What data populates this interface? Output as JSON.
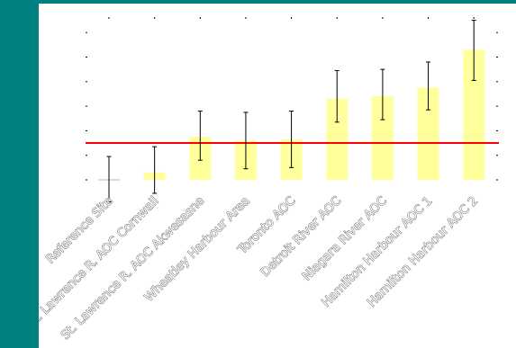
{
  "colors": {
    "background": "#00807f",
    "panel": "#ffffff",
    "bar_fill": "#ffff9c",
    "reference_line": "#ff0000",
    "error_bar": "#000000",
    "tick_label": "#ffffff",
    "tick_label_outline": "#5a5a5a"
  },
  "chart_data": {
    "type": "bar",
    "categories": [
      "Reference Site",
      "St. Lawrence R. AOC Cornwall",
      "St. Lawrence R. AOC Akwesasne",
      "Wheatley Harbour Area",
      "Toronto AOC",
      "Detroit River AOC",
      "Niagara River AOC",
      "Hamilton Harbour AOC 1",
      "Hamilton Harbour AOC 2"
    ],
    "values": [
      0,
      0.3,
      1.75,
      1.6,
      1.65,
      3.3,
      3.4,
      3.75,
      5.3
    ],
    "error_low": [
      -0.9,
      -0.55,
      0.8,
      0.45,
      0.5,
      2.35,
      2.45,
      2.85,
      4.05
    ],
    "error_high": [
      0.95,
      1.35,
      2.8,
      2.75,
      2.8,
      4.45,
      4.5,
      4.8,
      6.5
    ],
    "reference_line": 1.5,
    "ylim": [
      -1,
      6.6
    ],
    "yticks": [
      0,
      1,
      2,
      3,
      4,
      5,
      6
    ],
    "title": "",
    "xlabel": "",
    "ylabel": "",
    "grid": false,
    "legend": "none"
  }
}
